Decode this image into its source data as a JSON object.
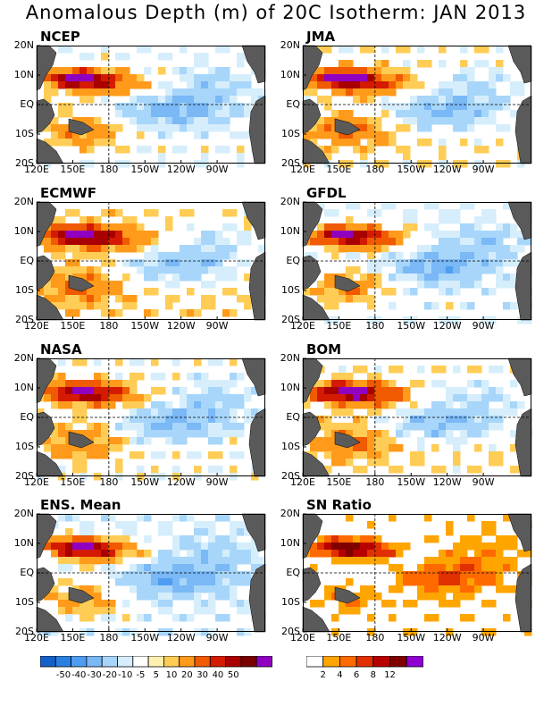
{
  "title": "Anomalous Depth (m) of 20C Isotherm: JAN 2013",
  "x_tick_labels": [
    "120E",
    "150E",
    "180",
    "150W",
    "120W",
    "90W"
  ],
  "y_tick_labels": [
    "20N",
    "10N",
    "EQ",
    "10S",
    "20S"
  ],
  "panels": [
    {
      "title": "NCEP"
    },
    {
      "title": "JMA"
    },
    {
      "title": "ECMWF"
    },
    {
      "title": "GFDL"
    },
    {
      "title": "NASA"
    },
    {
      "title": "BOM"
    },
    {
      "title": "ENS. Mean"
    },
    {
      "title": "SN Ratio"
    }
  ],
  "colors": {
    "land": "#5a5a5a",
    "anomaly_scale": [
      "#1560c8",
      "#2a80e0",
      "#4f9cf0",
      "#7ab8f6",
      "#a7d6fa",
      "#d6eefc",
      "#ffffff",
      "#fff0b0",
      "#ffcc55",
      "#ff9a1a",
      "#f05a00",
      "#d41a00",
      "#a80000",
      "#780000",
      "#9000c0"
    ],
    "sn_scale": [
      "#ffffff",
      "#ffa500",
      "#ff6a00",
      "#e03000",
      "#b80000",
      "#800000",
      "#9000d0"
    ]
  },
  "chart_data": [
    {
      "type": "heatmap",
      "title": "",
      "colorbar": {
        "levels": [
          -50,
          -40,
          -30,
          -20,
          -10,
          -5,
          5,
          10,
          20,
          30,
          40,
          50
        ],
        "labels": [
          "-50",
          "-40",
          "-30",
          "-20",
          "-10",
          "-5",
          "5",
          "10",
          "20",
          "30",
          "40",
          "50"
        ]
      }
    },
    {
      "type": "heatmap",
      "title": "",
      "colorbar": {
        "levels": [
          2,
          4,
          6,
          8,
          12
        ],
        "labels": [
          "2",
          "4",
          "6",
          "8",
          "12"
        ]
      }
    }
  ]
}
